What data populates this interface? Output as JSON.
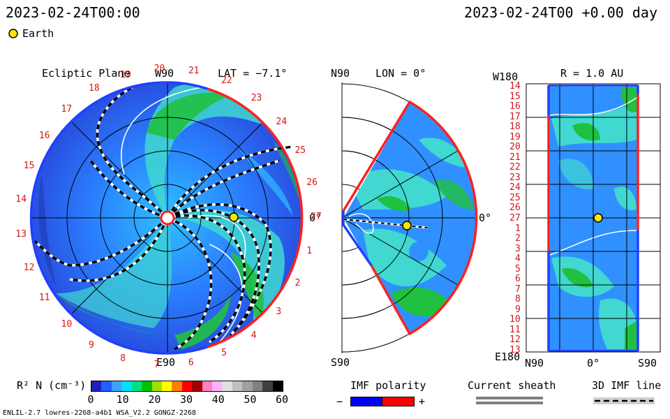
{
  "header": {
    "timestamp": "2023-02-24T00:00",
    "right_time": "2023-02-24T00 +0.00 day"
  },
  "legend_earth": {
    "label": "Earth",
    "color": "#ffe400"
  },
  "panel_ecliptic": {
    "title": "Ecliptic Plane",
    "w90": "W90",
    "lat": "LAT = −7.1°",
    "e90": "E90",
    "zero": "0°",
    "carrington": [
      "19",
      "20",
      "21",
      "22",
      "23",
      "24",
      "25",
      "26",
      "27",
      "1",
      "2",
      "3",
      "4",
      "5",
      "6",
      "7",
      "8",
      "9",
      "10",
      "11",
      "12",
      "13",
      "14",
      "15",
      "16",
      "17",
      "18"
    ],
    "earth_color": "#ffe400"
  },
  "panel_meridional": {
    "n90": "N90",
    "lon": "LON = 0°",
    "s90": "S90",
    "zero": "0°"
  },
  "panel_radial": {
    "w180": "W180",
    "r": "R = 1.0 AU",
    "e180": "E180",
    "n90": "N90",
    "zero": "0°",
    "s90": "S90",
    "carrington": [
      "14",
      "15",
      "16",
      "17",
      "18",
      "19",
      "20",
      "21",
      "22",
      "23",
      "24",
      "25",
      "26",
      "27",
      "1",
      "2",
      "3",
      "4",
      "5",
      "6",
      "7",
      "8",
      "9",
      "10",
      "11",
      "12",
      "13"
    ]
  },
  "colorbar": {
    "label": "R² N (cm⁻³)",
    "ticks": [
      "0",
      "10",
      "20",
      "30",
      "40",
      "50",
      "60"
    ],
    "colors": [
      "#2020c0",
      "#2060ff",
      "#40a0ff",
      "#00e0ff",
      "#00e080",
      "#00c000",
      "#a0e000",
      "#ffff00",
      "#ff8000",
      "#ff0000",
      "#a00000",
      "#ff80c0",
      "#ffb0ff",
      "#e0e0e0",
      "#c0c0c0",
      "#a0a0a0",
      "#808080",
      "#404040",
      "#000000"
    ]
  },
  "imf_polarity": {
    "label": "IMF polarity",
    "minus": "−",
    "plus": "+",
    "neg_color": "#0000ff",
    "pos_color": "#ff0000"
  },
  "current_sheath": {
    "label": "Current sheath",
    "color": "#808080"
  },
  "imf_3d": {
    "label": "3D IMF line"
  },
  "footer": {
    "model": "ENLIL-2.7 lowres-2268-a4b1 WSA_V2.2 GONGZ-2268"
  }
}
